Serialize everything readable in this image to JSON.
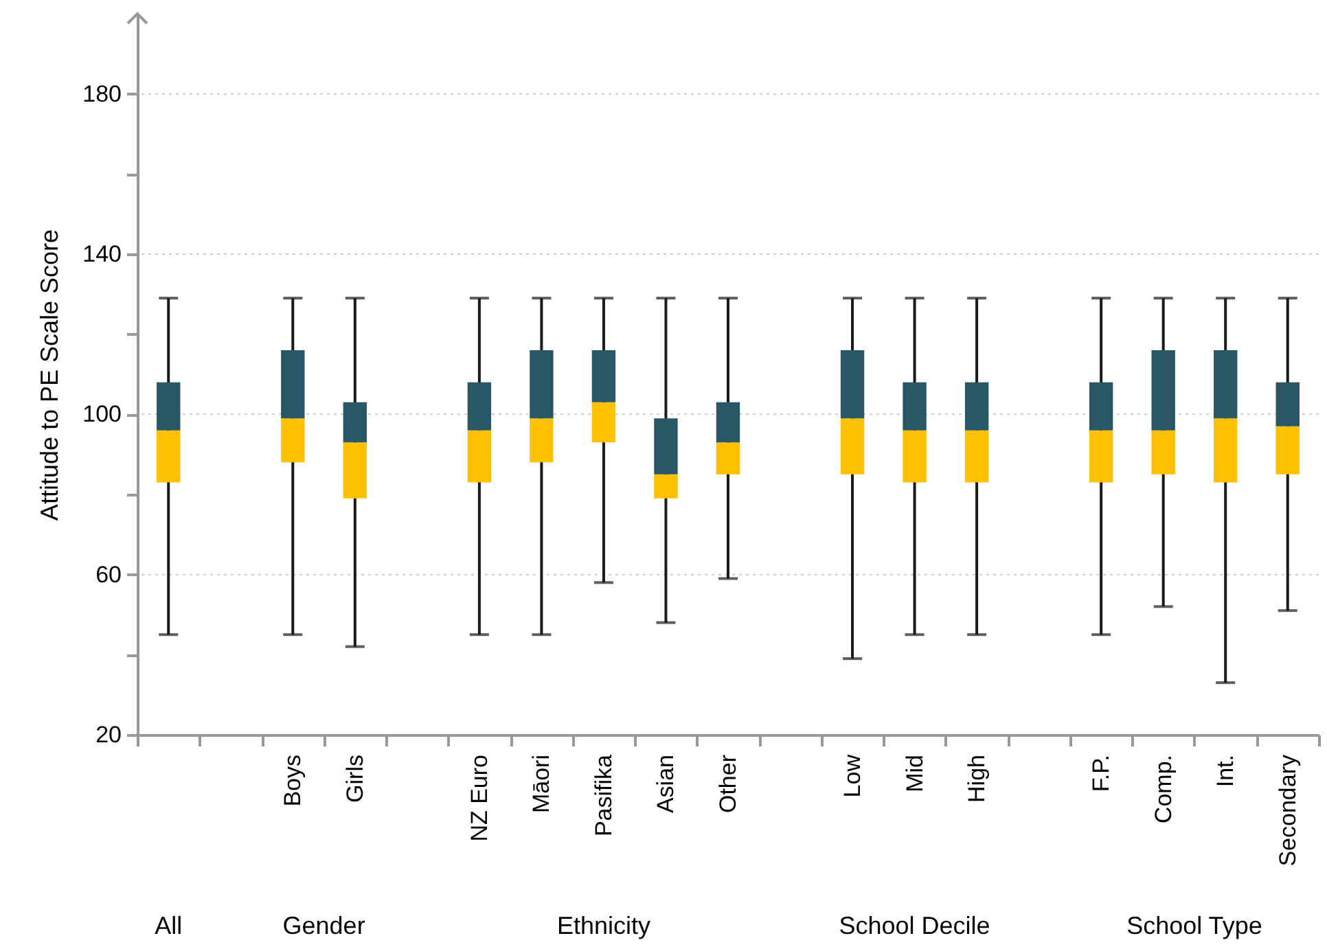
{
  "chart_data": {
    "type": "box",
    "ylabel": "Attitude to PE Scale Score",
    "categories": [
      null,
      null,
      "Boys",
      "Girls",
      null,
      "NZ Euro",
      "Māori",
      "Pasifika",
      "Asian",
      "Other",
      null,
      "Low",
      "Mid",
      "High",
      null,
      "F.P.",
      "Comp.",
      "Int.",
      "Secondary"
    ],
    "color": "#2a5766",
    "series": [
      {
        "color": "#ffc000",
        "boxes": [
          {
            "low": 45,
            "q1": 83,
            "median": 96,
            "q3": 108,
            "high": 129
          },
          null,
          {
            "low": 45,
            "q1": 88,
            "median": 99,
            "q3": 116,
            "high": 129
          },
          {
            "low": 42,
            "q1": 79,
            "median": 93,
            "q3": 103,
            "high": 129
          },
          null,
          {
            "low": 45,
            "q1": 83,
            "median": 96,
            "q3": 108,
            "high": 129
          },
          {
            "low": 45,
            "q1": 88,
            "median": 99,
            "q3": 116,
            "high": 129
          },
          {
            "low": 58,
            "q1": 93,
            "median": 103,
            "q3": 116,
            "high": 129
          },
          {
            "low": 48,
            "q1": 79,
            "median": 85,
            "q3": 99,
            "high": 129
          },
          {
            "low": 59,
            "q1": 85,
            "median": 93,
            "q3": 103,
            "high": 129
          },
          null,
          {
            "low": 39,
            "q1": 85,
            "median": 99,
            "q3": 116,
            "high": 129
          },
          {
            "low": 45,
            "q1": 83,
            "median": 96,
            "q3": 108,
            "high": 129
          },
          {
            "low": 45,
            "q1": 83,
            "median": 96,
            "q3": 108,
            "high": 129
          },
          null,
          {
            "low": 45,
            "q1": 83,
            "median": 96,
            "q3": 108,
            "high": 129
          },
          {
            "low": 52,
            "q1": 85,
            "median": 96,
            "q3": 116,
            "high": 129
          },
          {
            "low": 33,
            "q1": 83,
            "median": 99,
            "q3": 116,
            "high": 129
          },
          {
            "low": 51,
            "q1": 85,
            "median": 97,
            "q3": 108,
            "high": 129
          }
        ]
      }
    ],
    "ylim": [
      20,
      200
    ],
    "yticks": [
      20,
      {
        "value": 40,
        "label": null
      },
      60,
      {
        "value": 80,
        "label": null
      },
      100,
      {
        "value": 120,
        "label": null
      },
      140,
      {
        "value": 160,
        "label": null
      },
      180
    ],
    "grid": "y",
    "annotations": [
      "All",
      "Gender",
      "Ethnicity",
      "School Decile",
      "School Type"
    ]
  }
}
